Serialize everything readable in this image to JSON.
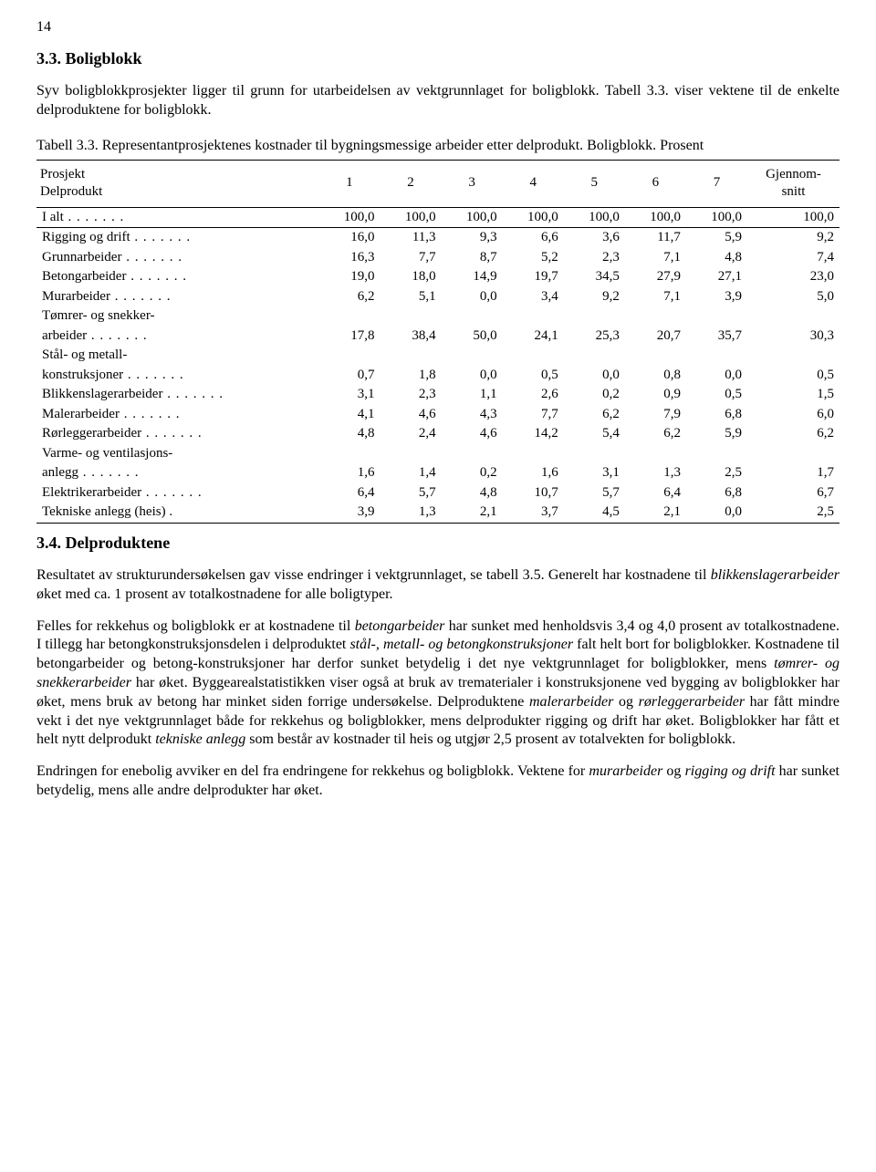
{
  "page_number": "14",
  "section1": {
    "heading": "3.3. Boligblokk",
    "para1": "Syv boligblokkprosjekter ligger til grunn for utarbeidelsen av vektgrunnlaget for boligblokk. Tabell 3.3. viser vektene til de enkelte delproduktene for boligblokk."
  },
  "table": {
    "caption": "Tabell 3.3. Representantprosjektenes kostnader til bygningsmessige arbeider etter delprodukt. Boligblokk. Prosent",
    "head_rowlabel_top": "Prosjekt",
    "head_rowlabel_bottom": "Delprodukt",
    "head_cols": [
      "1",
      "2",
      "3",
      "4",
      "5",
      "6",
      "7"
    ],
    "head_last_top": "Gjennom-",
    "head_last_bottom": "snitt",
    "total_row": {
      "label": "I alt",
      "vals": [
        "100,0",
        "100,0",
        "100,0",
        "100,0",
        "100,0",
        "100,0",
        "100,0",
        "100,0"
      ]
    },
    "rows": [
      {
        "label": "Rigging og drift",
        "vals": [
          "16,0",
          "11,3",
          "9,3",
          "6,6",
          "3,6",
          "11,7",
          "5,9",
          "9,2"
        ]
      },
      {
        "label": "Grunnarbeider",
        "vals": [
          "16,3",
          "7,7",
          "8,7",
          "5,2",
          "2,3",
          "7,1",
          "4,8",
          "7,4"
        ]
      },
      {
        "label": "Betongarbeider",
        "vals": [
          "19,0",
          "18,0",
          "14,9",
          "19,7",
          "34,5",
          "27,9",
          "27,1",
          "23,0"
        ]
      },
      {
        "label": "Murarbeider",
        "vals": [
          "6,2",
          "5,1",
          "0,0",
          "3,4",
          "9,2",
          "7,1",
          "3,9",
          "5,0"
        ]
      },
      {
        "label_pre": "Tømrer- og snekker-",
        "label": "arbeider",
        "vals": [
          "17,8",
          "38,4",
          "50,0",
          "24,1",
          "25,3",
          "20,7",
          "35,7",
          "30,3"
        ]
      },
      {
        "label_pre": "Stål- og metall-",
        "label": "konstruksjoner",
        "vals": [
          "0,7",
          "1,8",
          "0,0",
          "0,5",
          "0,0",
          "0,8",
          "0,0",
          "0,5"
        ]
      },
      {
        "label": "Blikkenslagerarbeider",
        "vals": [
          "3,1",
          "2,3",
          "1,1",
          "2,6",
          "0,2",
          "0,9",
          "0,5",
          "1,5"
        ]
      },
      {
        "label": "Malerarbeider",
        "vals": [
          "4,1",
          "4,6",
          "4,3",
          "7,7",
          "6,2",
          "7,9",
          "6,8",
          "6,0"
        ]
      },
      {
        "label": "Rørleggerarbeider",
        "vals": [
          "4,8",
          "2,4",
          "4,6",
          "14,2",
          "5,4",
          "6,2",
          "5,9",
          "6,2"
        ]
      },
      {
        "label_pre": "Varme- og ventilasjons-",
        "label": "anlegg",
        "vals": [
          "1,6",
          "1,4",
          "0,2",
          "1,6",
          "3,1",
          "1,3",
          "2,5",
          "1,7"
        ]
      },
      {
        "label": "Elektrikerarbeider",
        "vals": [
          "6,4",
          "5,7",
          "4,8",
          "10,7",
          "5,7",
          "6,4",
          "6,8",
          "6,7"
        ]
      },
      {
        "label": "Tekniske anlegg (heis)",
        "dot": ".",
        "vals": [
          "3,9",
          "1,3",
          "2,1",
          "3,7",
          "4,5",
          "2,1",
          "0,0",
          "2,5"
        ]
      }
    ]
  },
  "section2": {
    "heading": "3.4. Delproduktene",
    "para1_a": "Resultatet av strukturundersøkelsen gav visse endringer i vektgrunnlaget, se tabell 3.5. Generelt har kostnadene til ",
    "para1_i1": "blikkenslagerarbeider",
    "para1_b": " øket med ca. 1 prosent av totalkostnadene for alle boligtyper.",
    "para2_a": "Felles for rekkehus og boligblokk er at kostnadene til ",
    "para2_i1": "betongarbeider",
    "para2_b": " har sunket med henholdsvis 3,4 og 4,0 prosent av totalkostnadene. I tillegg har betongkonstruksjonsdelen i delproduktet ",
    "para2_i2": "stål-, metall- og betongkonstruksjoner",
    "para2_c": " falt helt bort for boligblokker. Kostnadene til betongarbeider og betong-konstruksjoner har derfor sunket betydelig i det nye vektgrunnlaget for boligblokker, mens ",
    "para2_i3": "tømrer- og snekkerarbeider",
    "para2_d": " har øket. Byggearealstatistikken viser også at bruk av trematerialer i konstruksjonene ved bygging av boligblokker har øket, mens bruk av betong har minket siden forrige undersøkelse. Delproduktene ",
    "para2_i4": "malerarbeider",
    "para2_e": " og ",
    "para2_i5": "rørleggerarbeider",
    "para2_f": " har fått mindre vekt i det nye vektgrunnlaget både for rekkehus og boligblokker, mens delprodukter rigging og drift har øket. Boligblokker har fått et helt nytt delprodukt ",
    "para2_i6": "tekniske anlegg",
    "para2_g": " som består av kostnader til heis og utgjør 2,5 prosent av totalvekten for boligblokk.",
    "para3_a": "Endringen for enebolig avviker en del fra endringene for rekkehus og boligblokk. Vektene for ",
    "para3_i1": "murarbeider",
    "para3_b": " og ",
    "para3_i2": "rigging og drift",
    "para3_c": " har sunket betydelig, mens alle andre delprodukter har øket."
  }
}
